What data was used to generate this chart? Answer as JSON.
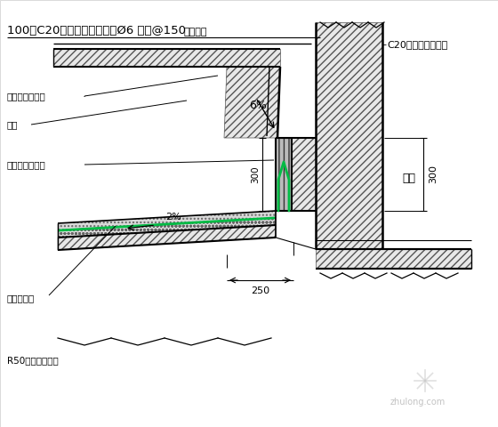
{
  "bg_color": "#ffffff",
  "line_color": "#000000",
  "green_color": "#00bb44",
  "labels": {
    "top_label": "防水砂浆",
    "slab_label": "100厚C20现浇钢筋混凝土板Ø6 双向@150",
    "seal_mouth": "建筑密封胶封口",
    "drip": "滴水",
    "seal_seam": "建筑密封胶嵌缝",
    "waterproof_layer": "防水附加层",
    "round_corner": "R50水泥砂浆圆角",
    "right_label": "C20现浇钢筋混凝土",
    "indoor": "室内",
    "dim_300_right": "300",
    "dim_300_mid": "300",
    "dim_250": "250",
    "slope_6": "6%",
    "slope_2": "2%"
  },
  "figsize": [
    5.6,
    4.8
  ],
  "dpi": 100
}
